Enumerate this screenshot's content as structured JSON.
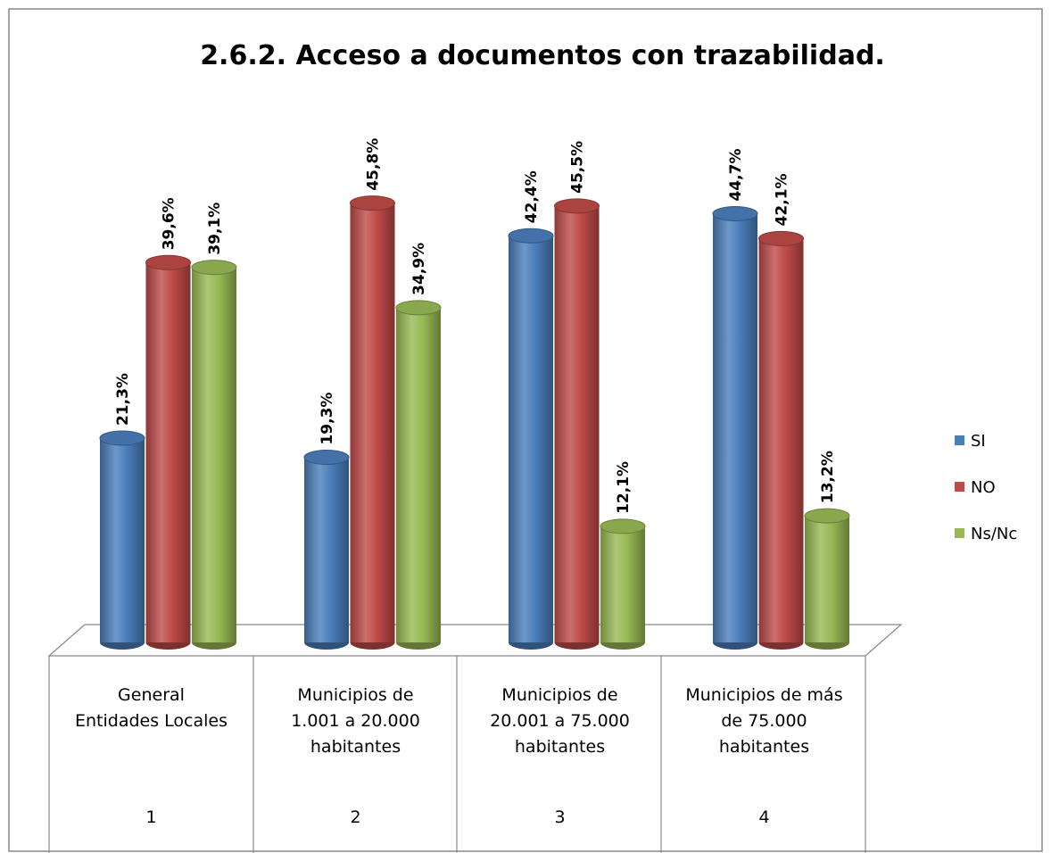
{
  "chart_data": {
    "type": "bar3d",
    "title": "2.6.2. Acceso a documentos con trazabilidad.",
    "categories": [
      "General\nEntidades Locales",
      "Municipios de\n1.001 a 20.000\nhabitantes",
      "Municipios de\n20.001 a 75.000\nhabitantes",
      "Municipios de más\nde 75.000\nhabitantes"
    ],
    "category_numbers": [
      "1",
      "2",
      "3",
      "4"
    ],
    "series": [
      {
        "name": "SI",
        "color": "#4a7ebb",
        "values": [
          21.3,
          19.3,
          42.4,
          44.7
        ],
        "value_labels": [
          "21,3%",
          "19,3%",
          "42,4%",
          "44,7%"
        ]
      },
      {
        "name": "NO",
        "color": "#be4b48",
        "values": [
          39.6,
          45.8,
          45.5,
          42.1
        ],
        "value_labels": [
          "39,6%",
          "45,8%",
          "45,5%",
          "42,1%"
        ]
      },
      {
        "name": "Ns/Nc",
        "color": "#98b954",
        "values": [
          39.1,
          34.9,
          12.1,
          13.2
        ],
        "value_labels": [
          "39,1%",
          "34,9%",
          "12,1%",
          "13,2%"
        ]
      }
    ],
    "legend": "right"
  }
}
